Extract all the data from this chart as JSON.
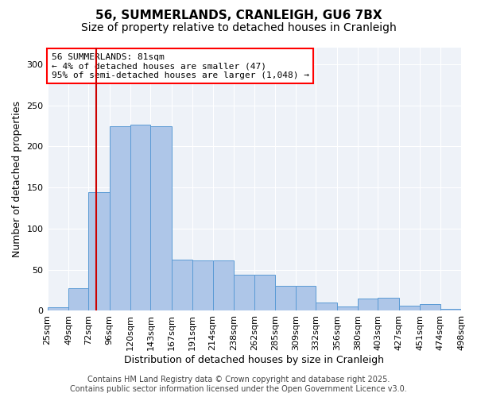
{
  "title_line1": "56, SUMMERLANDS, CRANLEIGH, GU6 7BX",
  "title_line2": "Size of property relative to detached houses in Cranleigh",
  "xlabel": "Distribution of detached houses by size in Cranleigh",
  "ylabel": "Number of detached properties",
  "annotation_line1": "56 SUMMERLANDS: 81sqm",
  "annotation_line2": "← 4% of detached houses are smaller (47)",
  "annotation_line3": "95% of semi-detached houses are larger (1,048) →",
  "footer_line1": "Contains HM Land Registry data © Crown copyright and database right 2025.",
  "footer_line2": "Contains public sector information licensed under the Open Government Licence v3.0.",
  "property_size": 81,
  "bin_edges": [
    25,
    49,
    72,
    96,
    120,
    143,
    167,
    191,
    214,
    238,
    262,
    285,
    309,
    332,
    356,
    380,
    403,
    427,
    451,
    474,
    498
  ],
  "bar_heights": [
    4,
    27,
    144,
    224,
    226,
    224,
    62,
    61,
    61,
    44,
    44,
    30,
    30,
    10,
    5,
    15,
    16,
    6,
    8,
    2
  ],
  "bar_color": "#aec6e8",
  "bar_edge_color": "#5b9bd5",
  "vline_color": "#cc0000",
  "background_color": "#eef2f8",
  "ylim": [
    0,
    320
  ],
  "yticks": [
    0,
    50,
    100,
    150,
    200,
    250,
    300
  ],
  "title_fontsize": 11,
  "subtitle_fontsize": 10,
  "axis_label_fontsize": 9,
  "tick_fontsize": 8,
  "annotation_fontsize": 8,
  "footer_fontsize": 7
}
